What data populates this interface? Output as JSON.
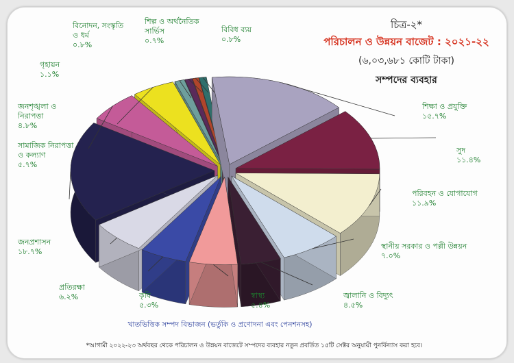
{
  "figure_label": "চিত্র-২*",
  "title": "পরিচালন ও উন্নয়ন বাজেট : ২০২১-২২",
  "subtitle": "(৬,০৩,৬৮১ কোটি টাকা)",
  "subtitle2": "সম্পদের ব্যবহার",
  "caption": "খাতভিত্তিক সম্পদ বিভাজন (ভর্তুকি ও প্রণোদনা এবং পেনশনসহ)",
  "footnote": "*আগামী ২০২২-২৩ অর্থবছর থেকে পরিচালন ও উন্নয়ন বাজেটে সম্পদের ব্যবহার নতুন প্রবর্তিত ১৫টি সেক্টর অনুযায়ী পুনর্বিন্যাস করা হবে।",
  "colors": {
    "title": "#d6321f",
    "label": "#1e7f2e",
    "caption": "#2a3f9c"
  },
  "chart_data": {
    "type": "pie",
    "three_d": true,
    "exploded": true,
    "total_label": "৬,০৩,৬৮১ কোটি টাকা",
    "slices": [
      {
        "label_lines": [
          "শিক্ষা ও প্রযুক্তি"
        ],
        "value_label": "১৫.৭%",
        "value": 15.7,
        "color": "#a9a3c0"
      },
      {
        "label_lines": [
          "সুদ"
        ],
        "value_label": "১১.৪%",
        "value": 11.4,
        "color": "#7a2143"
      },
      {
        "label_lines": [
          "পরিবহন ও যোগাযোগ"
        ],
        "value_label": "১১.৯%",
        "value": 11.9,
        "color": "#f3efcf"
      },
      {
        "label_lines": [
          "স্থানীয় সরকার ও পল্লী উন্নয়ন"
        ],
        "value_label": "৭.০%",
        "value": 7.0,
        "color": "#cfdcec"
      },
      {
        "label_lines": [
          "জ্বালানি ও বিদ্যুৎ"
        ],
        "value_label": "৪.৫%",
        "value": 4.5,
        "color": "#3a1f33"
      },
      {
        "label_lines": [
          "স্বাস্থ্য"
        ],
        "value_label": "৫.৪%",
        "value": 5.4,
        "color": "#f19a9a"
      },
      {
        "label_lines": [
          "কৃষি"
        ],
        "value_label": "৫.৩%",
        "value": 5.3,
        "color": "#3a4aa6"
      },
      {
        "label_lines": [
          "প্রতিরক্ষা"
        ],
        "value_label": "৬.২%",
        "value": 6.2,
        "color": "#d9d9e6"
      },
      {
        "label_lines": [
          "জনপ্রশাসন"
        ],
        "value_label": "১৮.৭%",
        "value": 18.7,
        "color": "#24224f"
      },
      {
        "label_lines": [
          "সামাজিক নিরাপত্তা",
          "ও কল্যাণ"
        ],
        "value_label": "৫.৭%",
        "value": 5.7,
        "color": "#c45b98"
      },
      {
        "label_lines": [
          "জনশৃঙ্খলা ও",
          "নিরাপত্তা"
        ],
        "value_label": "৪.৮%",
        "value": 4.8,
        "color": "#ece11f"
      },
      {
        "label_lines": [
          "গৃহায়ন"
        ],
        "value_label": "১.১%",
        "value": 1.1,
        "color": "#6e9f9c"
      },
      {
        "label_lines": [
          "বিনোদন, সংস্কৃতি",
          "ও ধর্ম"
        ],
        "value_label": "০.৮%",
        "value": 0.8,
        "color": "#5a2a5a"
      },
      {
        "label_lines": [
          "শিল্প ও অর্থনৈতিক",
          "সার্ভিস"
        ],
        "value_label": "০.৭%",
        "value": 0.7,
        "color": "#b0452b"
      },
      {
        "label_lines": [
          "বিবিধ ব্যয়"
        ],
        "value_label": "০.৮%",
        "value": 0.8,
        "color": "#2f6f6c"
      }
    ]
  }
}
